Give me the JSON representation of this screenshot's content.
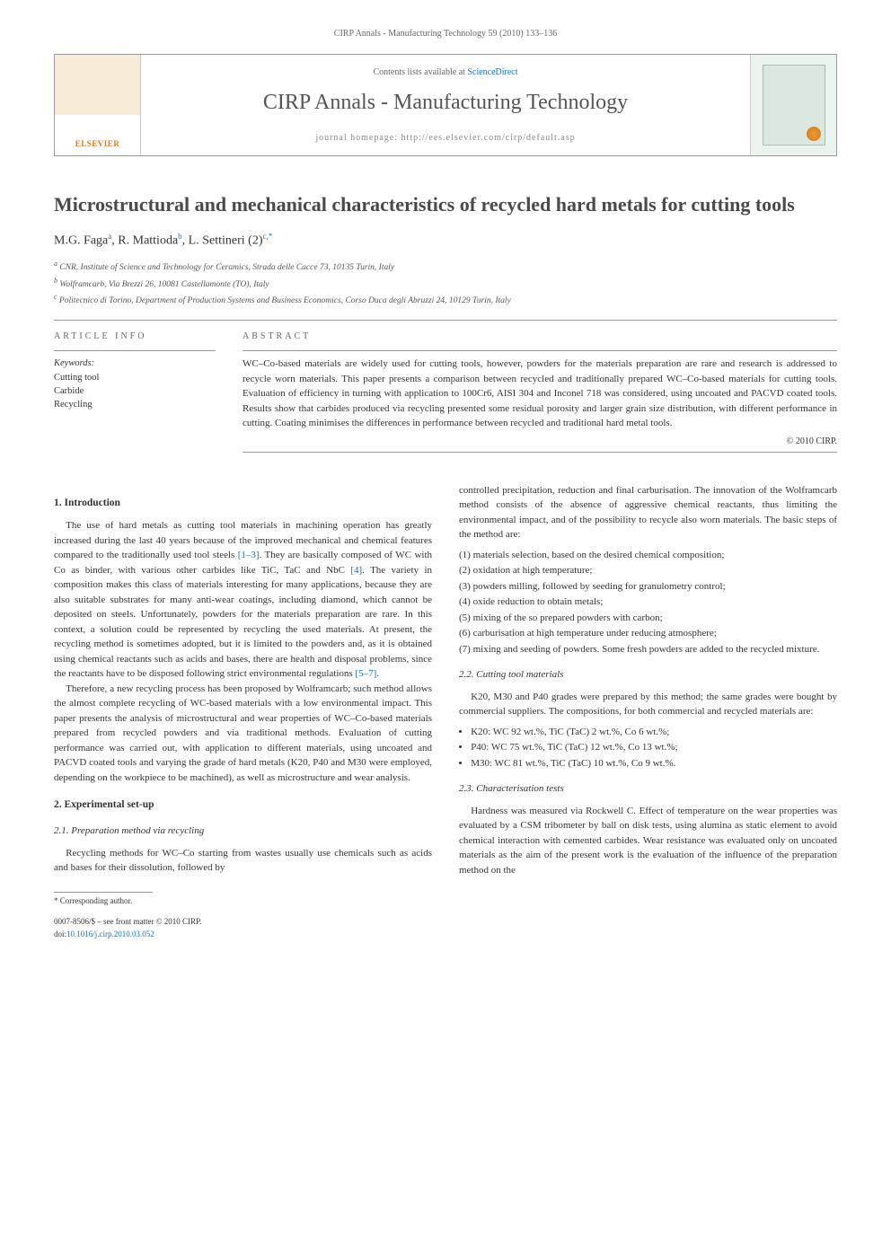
{
  "runningHeader": "CIRP Annals - Manufacturing Technology 59 (2010) 133–136",
  "masthead": {
    "publisher": "ELSEVIER",
    "scienceDirectPrefix": "Contents lists available at ",
    "scienceDirectLabel": "ScienceDirect",
    "journalName": "CIRP Annals - Manufacturing Technology",
    "homepage": "journal homepage: http://ees.elsevier.com/cirp/default.asp"
  },
  "title": "Microstructural and mechanical characteristics of recycled hard metals for cutting tools",
  "authors": [
    {
      "name": "M.G. Faga",
      "sup": "a"
    },
    {
      "name": "R. Mattioda",
      "sup": "b"
    },
    {
      "name": "L. Settineri (2)",
      "sup": "c,*"
    }
  ],
  "affiliations": [
    {
      "sup": "a",
      "text": "CNR, Institute of Science and Technology for Ceramics, Strada delle Cacce 73, 10135 Turin, Italy"
    },
    {
      "sup": "b",
      "text": "Wolframcarb, Via Brezzi 26, 10081 Castellamonte (TO), Italy"
    },
    {
      "sup": "c",
      "text": "Politecnico di Torino, Department of Production Systems and Business Economics, Corso Duca degli Abruzzi 24, 10129 Turin, Italy"
    }
  ],
  "articleInfo": {
    "header": "ARTICLE INFO",
    "keywordsLabel": "Keywords:",
    "keywords": [
      "Cutting tool",
      "Carbide",
      "Recycling"
    ]
  },
  "abstract": {
    "header": "ABSTRACT",
    "text": "WC–Co-based materials are widely used for cutting tools, however, powders for the materials preparation are rare and research is addressed to recycle worn materials. This paper presents a comparison between recycled and traditionally prepared WC–Co-based materials for cutting tools. Evaluation of efficiency in turning with application to 100Cr6, AISI 304 and Inconel 718 was considered, using uncoated and PACVD coated tools. Results show that carbides produced via recycling presented some residual porosity and larger grain size distribution, with different performance in cutting. Coating minimises the differences in performance between recycled and traditional hard metal tools.",
    "copyright": "© 2010 CIRP."
  },
  "sections": {
    "s1": {
      "head": "1. Introduction",
      "p1a": "The use of hard metals as cutting tool materials in machining operation has greatly increased during the last 40 years because of the improved mechanical and chemical features compared to the traditionally used tool steels ",
      "ref1": "[1–3]",
      "p1b": ". They are basically composed of WC with Co as binder, with various other carbides like TiC, TaC and NbC ",
      "ref2": "[4]",
      "p1c": ". The variety in composition makes this class of materials interesting for many applications, because they are also suitable substrates for many anti-wear coatings, including diamond, which cannot be deposited on steels. Unfortunately, powders for the materials preparation are rare. In this context, a solution could be represented by recycling the used materials. At present, the recycling method is sometimes adopted, but it is limited to the powders and, as it is obtained using chemical reactants such as acids and bases, there are health and disposal problems, since the reactants have to be disposed following strict environmental regulations ",
      "ref3": "[5–7]",
      "p1d": ".",
      "p2": "Therefore, a new recycling process has been proposed by Wolframcarb; such method allows the almost complete recycling of WC-based materials with a low environmental impact. This paper presents the analysis of microstructural and wear properties of WC–Co-based materials prepared from recycled powders and via traditional methods. Evaluation of cutting performance was carried out, with application to different materials, using uncoated and PACVD coated tools and varying the grade of hard metals (K20, P40 and M30 were employed, depending on the workpiece to be machined), as well as microstructure and wear analysis."
    },
    "s2": {
      "head": "2. Experimental set-up",
      "s21head": "2.1. Preparation method via recycling",
      "s21p1": "Recycling methods for WC–Co starting from wastes usually use chemicals such as acids and bases for their dissolution, followed by",
      "s21p1cont": "controlled precipitation, reduction and final carburisation. The innovation of the Wolframcarb method consists of the absence of aggressive chemical reactants, thus limiting the environmental impact, and of the possibility to recycle also worn materials. The basic steps of the method are:",
      "steps": [
        "(1) materials selection, based on the desired chemical composition;",
        "(2) oxidation at high temperature;",
        "(3) powders milling, followed by seeding for granulometry control;",
        "(4) oxide reduction to obtain metals;",
        "(5) mixing of the so prepared powders with carbon;",
        "(6) carburisation at high temperature under reducing atmosphere;",
        "(7) mixing and seeding of powders. Some fresh powders are added to the recycled mixture."
      ],
      "s22head": "2.2. Cutting tool materials",
      "s22p1": "K20, M30 and P40 grades were prepared by this method; the same grades were bought by commercial suppliers. The compositions, for both commercial and recycled materials are:",
      "compositions": [
        "K20: WC 92 wt.%, TiC (TaC) 2 wt.%, Co 6 wt.%;",
        "P40: WC 75 wt.%, TiC (TaC) 12  wt.%, Co 13 wt.%;",
        "M30: WC 81 wt.%, TiC (TaC) 10  wt.%, Co 9 wt.%."
      ],
      "s23head": "2.3. Characterisation tests",
      "s23p1": "Hardness was measured via Rockwell C. Effect of temperature on the wear properties was evaluated by a CSM tribometer by ball on disk tests, using alumina as static element to avoid chemical interaction with cemented carbides. Wear resistance was evaluated only on uncoated materials as the aim of the present work is the evaluation of the influence of the preparation method on the"
    }
  },
  "footnote": {
    "corresponding": "* Corresponding author.",
    "copyline": "0007-8506/$ – see front matter © 2010 CIRP.",
    "doiLabel": "doi:",
    "doi": "10.1016/j.cirp.2010.03.052"
  },
  "colors": {
    "link": "#1a6fb5",
    "rule": "#999999",
    "textMuted": "#666666",
    "elsevierOrange": "#e67817",
    "coverBg": "#eaf3ee"
  }
}
